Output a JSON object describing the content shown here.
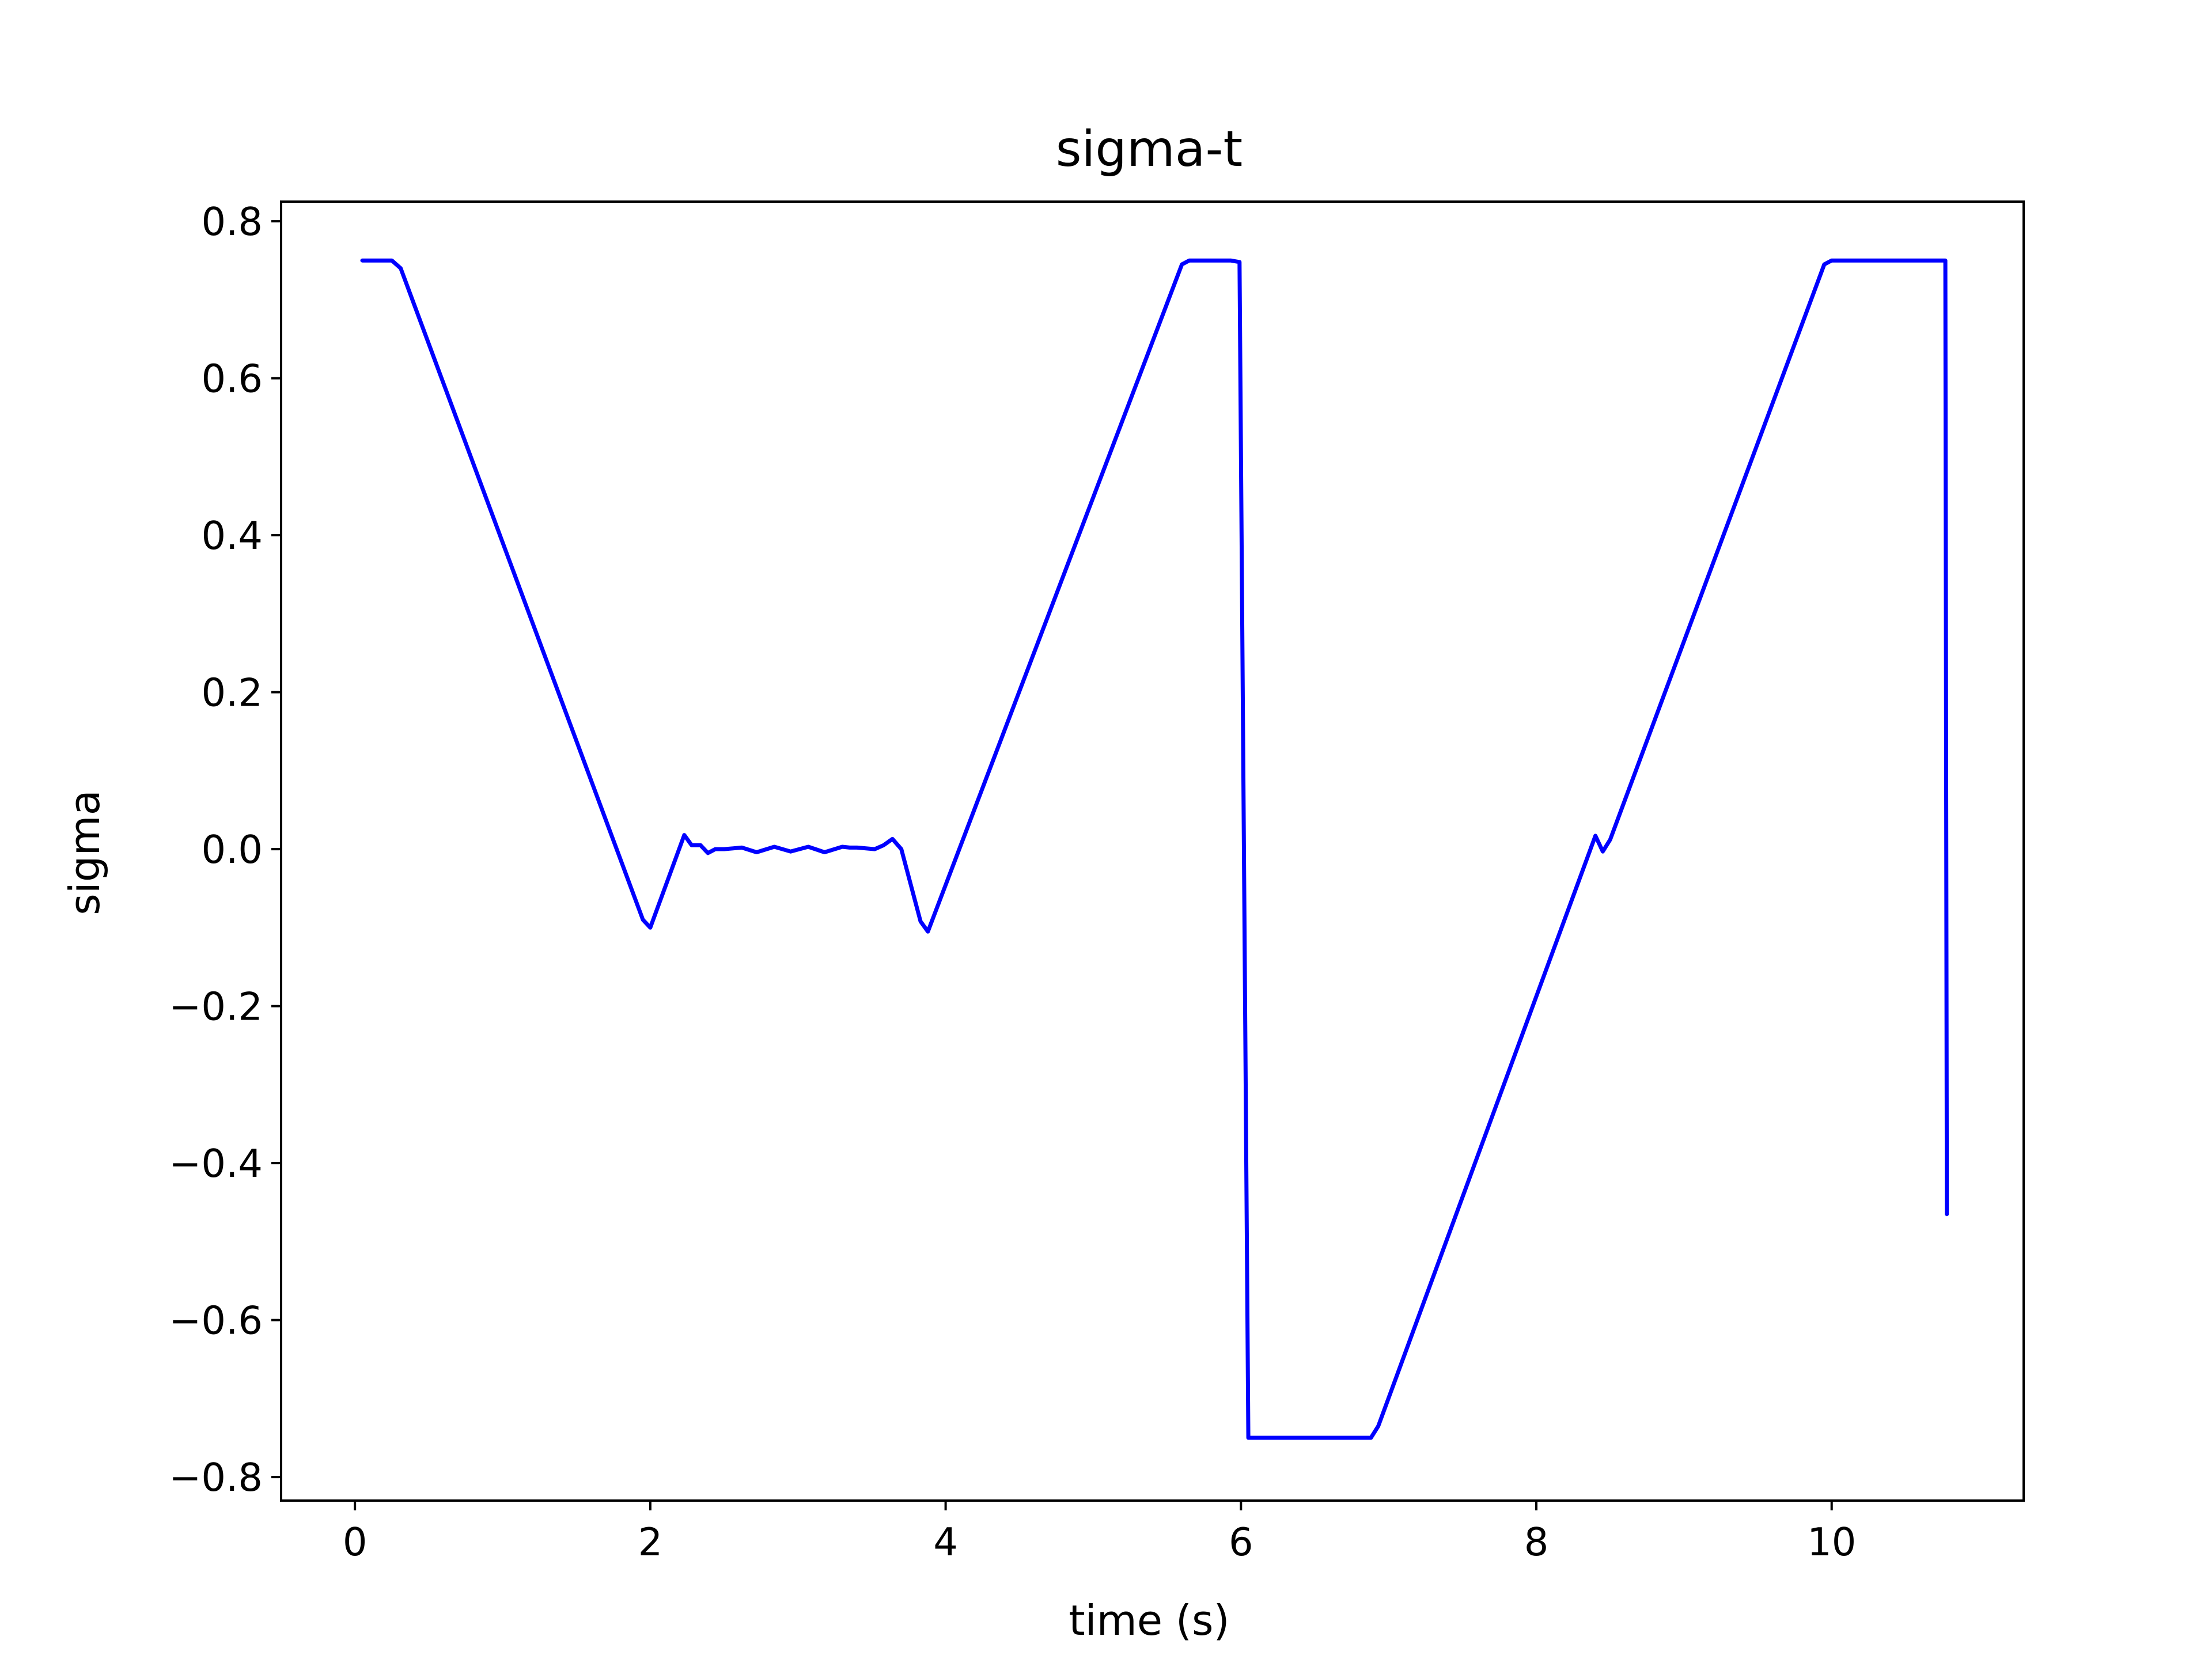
{
  "chart_data": {
    "type": "line",
    "title": "sigma-t",
    "xlabel": "time (s)",
    "ylabel": "sigma",
    "xlim": [
      -0.5,
      11.3
    ],
    "ylim": [
      -0.83,
      0.825
    ],
    "xticks": [
      0,
      2,
      4,
      6,
      8,
      10
    ],
    "xtick_labels": [
      "0",
      "2",
      "4",
      "6",
      "8",
      "10"
    ],
    "yticks": [
      0.8,
      0.6,
      0.4,
      0.2,
      0.0,
      -0.2,
      -0.4,
      -0.6,
      -0.8
    ],
    "ytick_labels": [
      "0.8",
      "0.6",
      "0.4",
      "0.2",
      "0.0",
      "−0.2",
      "−0.4",
      "−0.6",
      "−0.8"
    ],
    "grid": false,
    "color": "#0000ff",
    "series": [
      {
        "x": [
          0.05,
          0.25,
          0.31,
          1.95,
          2.0,
          2.23,
          2.28,
          2.34,
          2.39,
          2.44,
          2.5,
          2.62,
          2.72,
          2.84,
          2.95,
          3.07,
          3.18,
          3.3,
          3.35,
          3.4,
          3.52,
          3.58,
          3.64,
          3.7,
          3.83,
          3.88,
          5.6,
          5.65,
          5.88,
          5.93,
          5.99,
          6.05,
          6.83,
          6.88,
          6.93,
          8.4,
          8.45,
          8.5,
          9.95,
          10.0,
          10.73,
          10.77,
          10.77,
          10.78
        ],
        "y": [
          0.75,
          0.75,
          0.74,
          -0.09,
          -0.1,
          0.018,
          0.005,
          0.005,
          -0.005,
          0.0,
          0.0,
          0.002,
          -0.004,
          0.003,
          -0.003,
          0.003,
          -0.004,
          0.003,
          0.002,
          0.002,
          0.0,
          0.005,
          0.013,
          0.0,
          -0.092,
          -0.105,
          0.745,
          0.75,
          0.75,
          0.75,
          0.748,
          -0.75,
          -0.75,
          -0.75,
          -0.735,
          0.017,
          -0.003,
          0.012,
          0.745,
          0.75,
          0.75,
          0.75,
          0.748,
          -0.465
        ]
      }
    ]
  }
}
